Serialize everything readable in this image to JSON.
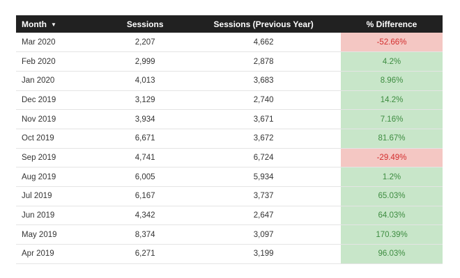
{
  "table": {
    "headers": {
      "month": "Month",
      "sessions": "Sessions",
      "sessions_prev": "Sessions (Previous Year)",
      "pct_diff": "% Difference"
    },
    "sort_indicator": "▼",
    "colors": {
      "header_bg": "#212121",
      "positive_bg": "#c8e6c9",
      "positive_text": "#3d8c40",
      "negative_bg": "#f4c7c3",
      "negative_text": "#d32f2f"
    },
    "rows": [
      {
        "month": "Mar 2020",
        "sessions": "2,207",
        "sessions_prev": "4,662",
        "pct_diff": "-52.66%",
        "trend": "negative"
      },
      {
        "month": "Feb 2020",
        "sessions": "2,999",
        "sessions_prev": "2,878",
        "pct_diff": "4.2%",
        "trend": "positive"
      },
      {
        "month": "Jan 2020",
        "sessions": "4,013",
        "sessions_prev": "3,683",
        "pct_diff": "8.96%",
        "trend": "positive"
      },
      {
        "month": "Dec 2019",
        "sessions": "3,129",
        "sessions_prev": "2,740",
        "pct_diff": "14.2%",
        "trend": "positive"
      },
      {
        "month": "Nov 2019",
        "sessions": "3,934",
        "sessions_prev": "3,671",
        "pct_diff": "7.16%",
        "trend": "positive"
      },
      {
        "month": "Oct 2019",
        "sessions": "6,671",
        "sessions_prev": "3,672",
        "pct_diff": "81.67%",
        "trend": "positive"
      },
      {
        "month": "Sep 2019",
        "sessions": "4,741",
        "sessions_prev": "6,724",
        "pct_diff": "-29.49%",
        "trend": "negative"
      },
      {
        "month": "Aug 2019",
        "sessions": "6,005",
        "sessions_prev": "5,934",
        "pct_diff": "1.2%",
        "trend": "positive"
      },
      {
        "month": "Jul 2019",
        "sessions": "6,167",
        "sessions_prev": "3,737",
        "pct_diff": "65.03%",
        "trend": "positive"
      },
      {
        "month": "Jun 2019",
        "sessions": "4,342",
        "sessions_prev": "2,647",
        "pct_diff": "64.03%",
        "trend": "positive"
      },
      {
        "month": "May 2019",
        "sessions": "8,374",
        "sessions_prev": "3,097",
        "pct_diff": "170.39%",
        "trend": "positive"
      },
      {
        "month": "Apr 2019",
        "sessions": "6,271",
        "sessions_prev": "3,199",
        "pct_diff": "96.03%",
        "trend": "positive"
      }
    ]
  }
}
